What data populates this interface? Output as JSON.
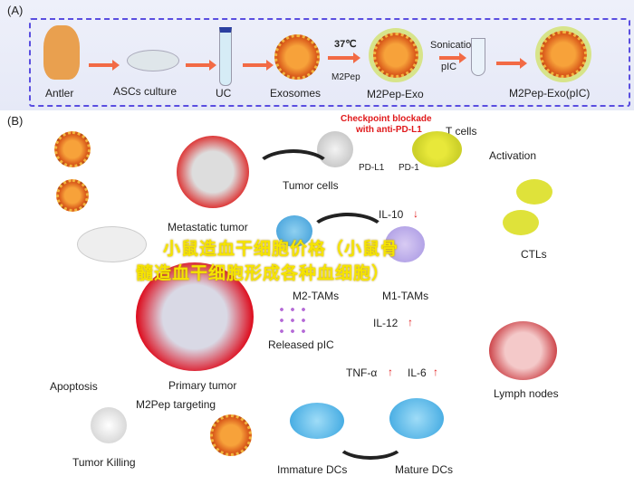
{
  "panel_a": {
    "label": "(A)",
    "steps": [
      "Antler",
      "ASCs culture",
      "UC",
      "Exosomes",
      "M2Pep-Exo",
      "M2Pep-Exo(pIC)"
    ],
    "temperature": "37℃",
    "reagent1": "M2Pep",
    "process": "Sonication",
    "reagent2": "pIC"
  },
  "panel_b": {
    "label": "(B)",
    "checkpoint": "Checkpoint blockade\nwith anti-PD-L1",
    "checkpoint_line1": "Checkpoint blockade",
    "checkpoint_line2": "with anti-PD-L1",
    "t_cells": "T cells",
    "pd_l1": "PD-L1",
    "pd_1": "PD-1",
    "tumor_cells": "Tumor cells",
    "activation": "Activation",
    "metastatic_tumor": "Metastatic tumor",
    "il10": "IL-10",
    "m2_tams": "M2-TAMs",
    "m1_tams": "M1-TAMs",
    "ctls": "CTLs",
    "released_pic": "Released pIC",
    "il12": "IL-12",
    "tnf": "TNF-α",
    "il6": "IL-6",
    "primary_tumor": "Primary tumor",
    "apoptosis": "Apoptosis",
    "m2pep_targeting": "M2Pep targeting",
    "tumor_killing": "Tumor Killing",
    "immature_dcs": "Immature DCs",
    "mature_dcs": "Mature DCs",
    "lymph_nodes": "Lymph nodes",
    "down_arrow": "↓",
    "up_arrow": "↑"
  },
  "watermark": {
    "line1": "小鼠造血干细胞价格（小鼠骨",
    "line2": "髓造血干细胞形成各种血细胞）"
  },
  "colors": {
    "arrow": "#f26a45",
    "dash": "#5a4ee0",
    "checkpoint": "#e0191b",
    "watermark": "#f5e400"
  }
}
